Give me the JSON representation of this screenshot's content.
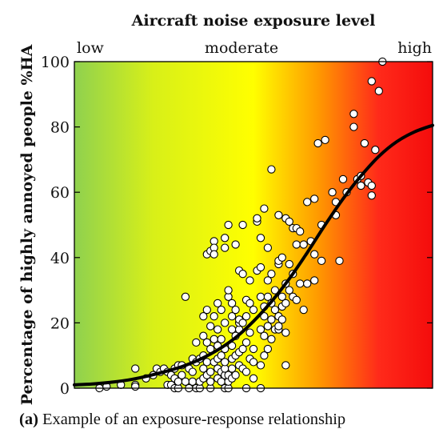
{
  "chart_data": {
    "type": "scatter",
    "title": "Aircraft noise exposure level",
    "ylabel": "Percentage of highly annoyed people %HA",
    "xlabel": "",
    "exposure_labels": [
      "low",
      "moderate",
      "high"
    ],
    "ylim": [
      0,
      100
    ],
    "xlim": [
      0,
      100
    ],
    "yticks": [
      0,
      20,
      40,
      60,
      80,
      100
    ],
    "grid": false,
    "background_gradient": [
      "#8fd14f",
      "#d8f018",
      "#ffff00",
      "#ff9a00",
      "#ff2a1a",
      "#f40c0c"
    ],
    "points": [
      [
        7,
        0
      ],
      [
        9,
        0.5
      ],
      [
        13,
        1
      ],
      [
        17,
        1
      ],
      [
        17,
        0.5
      ],
      [
        17,
        6
      ],
      [
        20,
        3
      ],
      [
        22,
        4
      ],
      [
        23,
        6
      ],
      [
        24,
        5
      ],
      [
        25,
        6
      ],
      [
        26,
        1
      ],
      [
        26,
        5
      ],
      [
        27,
        1
      ],
      [
        27,
        4
      ],
      [
        28,
        0
      ],
      [
        28,
        3
      ],
      [
        28,
        6
      ],
      [
        29,
        0
      ],
      [
        29,
        2
      ],
      [
        29,
        7
      ],
      [
        30,
        7
      ],
      [
        30,
        4
      ],
      [
        31,
        28
      ],
      [
        31,
        2
      ],
      [
        32,
        0
      ],
      [
        32,
        6
      ],
      [
        33,
        2
      ],
      [
        33,
        5
      ],
      [
        33,
        9
      ],
      [
        34,
        0
      ],
      [
        34,
        8
      ],
      [
        34,
        14
      ],
      [
        35,
        0
      ],
      [
        35,
        2
      ],
      [
        35,
        9
      ],
      [
        36,
        3
      ],
      [
        36,
        6
      ],
      [
        36,
        10
      ],
      [
        36,
        16
      ],
      [
        36,
        22
      ],
      [
        37,
        41
      ],
      [
        37,
        4
      ],
      [
        37,
        8
      ],
      [
        37,
        14
      ],
      [
        37,
        24
      ],
      [
        38,
        0
      ],
      [
        38,
        2
      ],
      [
        38,
        5
      ],
      [
        38,
        12
      ],
      [
        38,
        19
      ],
      [
        38,
        42
      ],
      [
        39,
        45
      ],
      [
        39,
        43
      ],
      [
        39,
        41
      ],
      [
        39,
        8
      ],
      [
        39,
        15
      ],
      [
        39,
        22
      ],
      [
        40,
        3
      ],
      [
        40,
        6
      ],
      [
        40,
        9
      ],
      [
        40,
        13
      ],
      [
        40,
        18
      ],
      [
        40,
        26
      ],
      [
        41,
        2
      ],
      [
        41,
        5
      ],
      [
        41,
        10
      ],
      [
        41,
        15
      ],
      [
        41,
        24
      ],
      [
        42,
        43
      ],
      [
        42,
        0
      ],
      [
        42,
        4
      ],
      [
        42,
        6
      ],
      [
        42,
        8
      ],
      [
        42,
        12
      ],
      [
        42,
        20
      ],
      [
        42,
        46
      ],
      [
        43,
        0
      ],
      [
        43,
        2
      ],
      [
        43,
        4
      ],
      [
        43,
        28
      ],
      [
        43,
        30
      ],
      [
        43,
        50
      ],
      [
        44,
        3
      ],
      [
        44,
        6
      ],
      [
        44,
        9
      ],
      [
        44,
        13
      ],
      [
        44,
        18
      ],
      [
        44,
        22
      ],
      [
        44,
        26
      ],
      [
        45,
        4
      ],
      [
        45,
        10
      ],
      [
        45,
        16
      ],
      [
        45,
        24
      ],
      [
        45,
        44
      ],
      [
        46,
        7
      ],
      [
        46,
        11
      ],
      [
        46,
        18
      ],
      [
        46,
        20
      ],
      [
        46,
        21
      ],
      [
        46,
        36
      ],
      [
        47,
        6
      ],
      [
        47,
        12
      ],
      [
        47,
        20
      ],
      [
        47,
        50
      ],
      [
        47,
        35
      ],
      [
        48,
        0
      ],
      [
        48,
        5
      ],
      [
        48,
        14
      ],
      [
        48,
        22
      ],
      [
        48,
        27
      ],
      [
        49,
        9
      ],
      [
        49,
        17
      ],
      [
        49,
        26
      ],
      [
        49,
        33
      ],
      [
        50,
        3
      ],
      [
        50,
        8
      ],
      [
        50,
        12
      ],
      [
        50,
        24
      ],
      [
        51,
        36
      ],
      [
        51,
        51
      ],
      [
        51,
        52
      ],
      [
        52,
        0
      ],
      [
        52,
        7
      ],
      [
        52,
        18
      ],
      [
        52,
        28
      ],
      [
        52,
        37
      ],
      [
        52,
        46
      ],
      [
        53,
        10
      ],
      [
        53,
        16
      ],
      [
        53,
        22
      ],
      [
        53,
        25
      ],
      [
        53,
        55
      ],
      [
        54,
        12
      ],
      [
        54,
        19
      ],
      [
        54,
        28
      ],
      [
        54,
        33
      ],
      [
        54,
        43
      ],
      [
        55,
        15
      ],
      [
        55,
        21
      ],
      [
        55,
        26
      ],
      [
        55,
        35
      ],
      [
        55,
        67
      ],
      [
        56,
        18
      ],
      [
        56,
        24
      ],
      [
        56,
        30
      ],
      [
        57,
        18
      ],
      [
        57,
        19
      ],
      [
        57,
        38
      ],
      [
        57,
        39
      ],
      [
        57,
        22
      ],
      [
        57,
        53
      ],
      [
        58,
        21
      ],
      [
        58,
        25
      ],
      [
        58,
        28
      ],
      [
        58,
        40
      ],
      [
        59,
        7
      ],
      [
        59,
        17
      ],
      [
        59,
        26
      ],
      [
        59,
        32
      ],
      [
        59,
        52
      ],
      [
        60,
        30
      ],
      [
        60,
        38
      ],
      [
        60,
        51
      ],
      [
        61,
        28
      ],
      [
        61,
        35
      ],
      [
        61,
        49
      ],
      [
        62,
        27
      ],
      [
        62,
        44
      ],
      [
        62,
        49
      ],
      [
        63,
        48
      ],
      [
        63,
        32
      ],
      [
        64,
        24
      ],
      [
        64,
        44
      ],
      [
        65,
        32
      ],
      [
        65,
        57
      ],
      [
        66,
        45
      ],
      [
        67,
        33
      ],
      [
        67,
        41
      ],
      [
        67,
        58
      ],
      [
        68,
        75
      ],
      [
        69,
        39
      ],
      [
        69,
        50
      ],
      [
        70,
        76
      ],
      [
        72,
        60
      ],
      [
        73,
        53
      ],
      [
        73,
        57
      ],
      [
        74,
        39
      ],
      [
        75,
        64
      ],
      [
        76,
        60
      ],
      [
        78,
        84
      ],
      [
        78,
        80
      ],
      [
        79,
        64
      ],
      [
        80,
        62
      ],
      [
        80,
        65
      ],
      [
        81,
        75
      ],
      [
        82,
        63
      ],
      [
        83,
        59
      ],
      [
        83,
        62
      ],
      [
        83,
        94
      ],
      [
        84,
        73
      ],
      [
        85,
        91
      ],
      [
        86,
        100
      ]
    ],
    "curve": {
      "description": "fitted exposure-response relationship",
      "x": [
        0,
        5,
        10,
        15,
        20,
        25,
        30,
        35,
        40,
        45,
        50,
        55,
        60,
        65,
        70,
        75,
        80,
        85,
        90,
        95,
        100
      ],
      "y": [
        1,
        1.3,
        1.8,
        2.5,
        3.6,
        5,
        6.6,
        8.8,
        11.7,
        15.5,
        20.5,
        26.5,
        33.5,
        41.5,
        50,
        58,
        65,
        71,
        75.5,
        78.5,
        80.5
      ]
    }
  },
  "caption": {
    "label": "(a)",
    "text": "Example of an exposure-response relationship"
  }
}
